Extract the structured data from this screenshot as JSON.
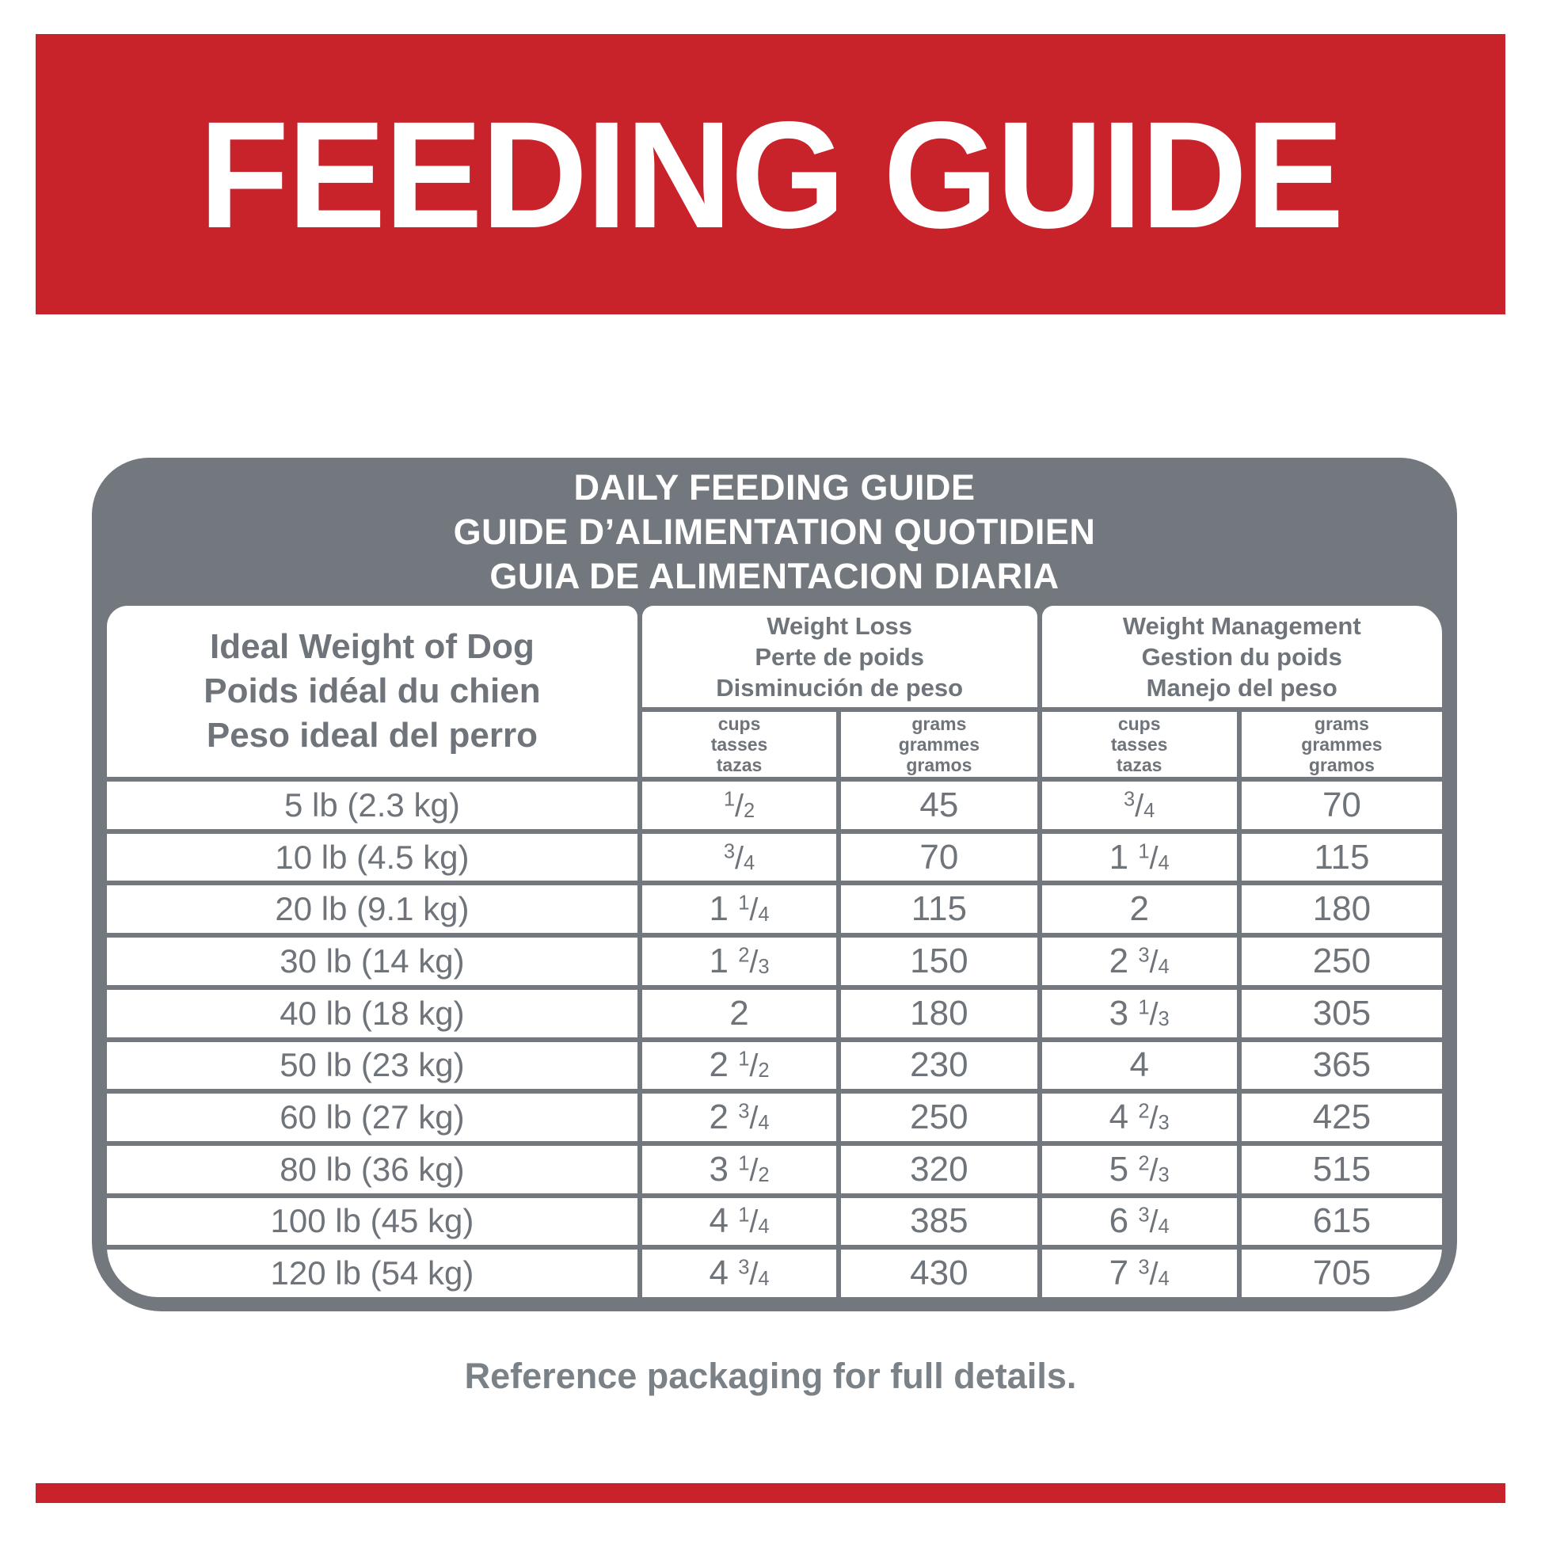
{
  "banner": {
    "title": "FEEDING GUIDE"
  },
  "colors": {
    "accent_red": "#C8222B",
    "table_gray": "#72787D",
    "text_gray": "#6E747A"
  },
  "table": {
    "title_lines": [
      "DAILY FEEDING GUIDE",
      "GUIDE D’ALIMENTATION QUOTIDIEN",
      "GUIA DE ALIMENTACION DIARIA"
    ],
    "weight_header_lines": [
      "Ideal Weight of Dog",
      "Poids idéal du chien",
      "Peso ideal del perro"
    ],
    "weight_loss_header_lines": [
      "Weight Loss",
      "Perte de poids",
      "Disminución de peso"
    ],
    "weight_mgmt_header_lines": [
      "Weight Management",
      "Gestion du poids",
      "Manejo del peso"
    ],
    "cups_subheader_lines": [
      "cups",
      "tasses",
      "tazas"
    ],
    "grams_subheader_lines": [
      "grams",
      "grammes",
      "gramos"
    ],
    "rows": [
      {
        "weight": "5 lb (2.3 kg)",
        "wl_cups": "1/2",
        "wl_grams": "45",
        "wm_cups": "3/4",
        "wm_grams": "70"
      },
      {
        "weight": "10 lb (4.5 kg)",
        "wl_cups": "3/4",
        "wl_grams": "70",
        "wm_cups": "1 1/4",
        "wm_grams": "115"
      },
      {
        "weight": "20 lb (9.1 kg)",
        "wl_cups": "1 1/4",
        "wl_grams": "115",
        "wm_cups": "2",
        "wm_grams": "180"
      },
      {
        "weight": "30 lb (14 kg)",
        "wl_cups": "1 2/3",
        "wl_grams": "150",
        "wm_cups": "2 3/4",
        "wm_grams": "250"
      },
      {
        "weight": "40 lb (18 kg)",
        "wl_cups": "2",
        "wl_grams": "180",
        "wm_cups": "3 1/3",
        "wm_grams": "305"
      },
      {
        "weight": "50 lb (23 kg)",
        "wl_cups": "2 1/2",
        "wl_grams": "230",
        "wm_cups": "4",
        "wm_grams": "365"
      },
      {
        "weight": "60 lb (27 kg)",
        "wl_cups": "2 3/4",
        "wl_grams": "250",
        "wm_cups": "4 2/3",
        "wm_grams": "425"
      },
      {
        "weight": "80 lb (36 kg)",
        "wl_cups": "3 1/2",
        "wl_grams": "320",
        "wm_cups": "5 2/3",
        "wm_grams": "515"
      },
      {
        "weight": "100 lb (45 kg)",
        "wl_cups": "4 1/4",
        "wl_grams": "385",
        "wm_cups": "6 3/4",
        "wm_grams": "615"
      },
      {
        "weight": "120 lb (54 kg)",
        "wl_cups": "4 3/4",
        "wl_grams": "430",
        "wm_cups": "7 3/4",
        "wm_grams": "705"
      }
    ]
  },
  "footer": {
    "note": "Reference packaging for full details."
  }
}
